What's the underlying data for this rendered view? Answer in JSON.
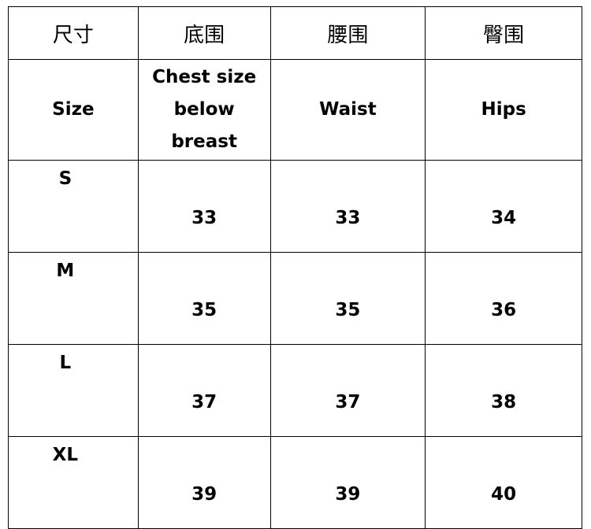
{
  "headers_cn": [
    "尺寸",
    "底围",
    "腰围",
    "臀围"
  ],
  "headers_en": [
    "Size",
    "Chest size below breast",
    "Waist",
    "Hips"
  ],
  "chest_lines": [
    "Chest size",
    "below",
    "breast"
  ],
  "rows": [
    {
      "size": "S",
      "chest": "33",
      "waist": "33",
      "hips": "34"
    },
    {
      "size": "M",
      "chest": "35",
      "waist": "35",
      "hips": "36"
    },
    {
      "size": "L",
      "chest": "37",
      "waist": "37",
      "hips": "38"
    },
    {
      "size": "XL",
      "chest": "39",
      "waist": "39",
      "hips": "40"
    }
  ]
}
